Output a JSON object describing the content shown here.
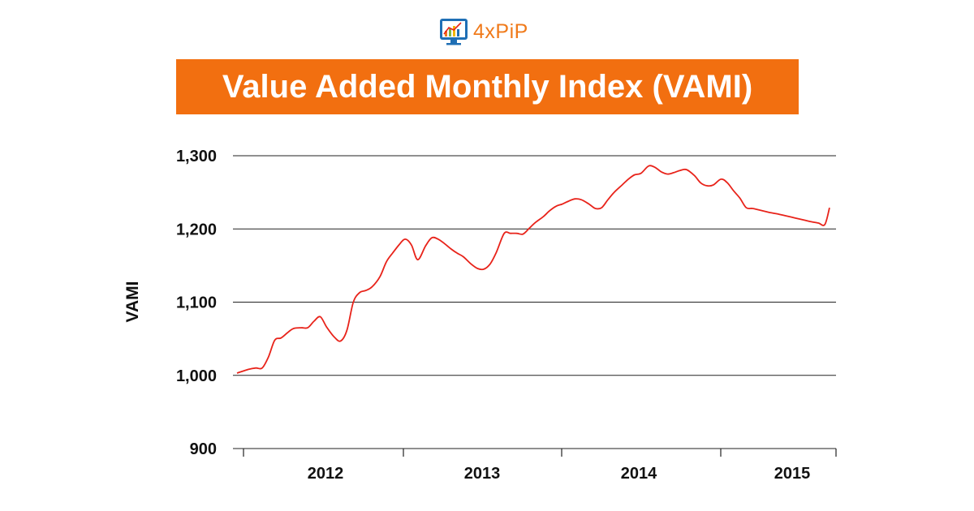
{
  "logo": {
    "text": "4xPiP"
  },
  "colors": {
    "banner": "#f26f10",
    "line": "#e8231a",
    "grid": "#222222",
    "logo_text": "#f07a1a"
  },
  "chart_data": {
    "type": "line",
    "title": "Value Added Monthly Index (VAMI)",
    "xlabel": "",
    "ylabel": "VAMI",
    "ylim": [
      900,
      1300
    ],
    "y_ticks": [
      900,
      1000,
      1100,
      1200,
      1300
    ],
    "y_tick_labels": [
      "900",
      "1,000",
      "1,100",
      "1,200",
      "1,300"
    ],
    "x_tick_labels": [
      "2012",
      "2013",
      "2014",
      "2015"
    ],
    "x_range": [
      2011.96,
      2015.73
    ],
    "grid": "horizontal",
    "legend": "none",
    "series": [
      {
        "color": "#e8231a",
        "x": [
          2011.96,
          2012.03,
          2012.08,
          2012.12,
          2012.16,
          2012.2,
          2012.24,
          2012.28,
          2012.32,
          2012.37,
          2012.41,
          2012.45,
          2012.49,
          2012.53,
          2012.58,
          2012.62,
          2012.66,
          2012.7,
          2012.74,
          2012.78,
          2012.82,
          2012.87,
          2012.91,
          2012.95,
          2012.99,
          2013.03,
          2013.07,
          2013.11,
          2013.16,
          2013.2,
          2013.24,
          2013.28,
          2013.32,
          2013.36,
          2013.4,
          2013.45,
          2013.49,
          2013.53,
          2013.57,
          2013.61,
          2013.66,
          2013.7,
          2013.74,
          2013.78,
          2013.82,
          2013.86,
          2013.91,
          2013.95,
          2013.99,
          2014.03,
          2014.07,
          2014.11,
          2014.15,
          2014.2,
          2014.24,
          2014.28,
          2014.32,
          2014.36,
          2014.41,
          2014.45,
          2014.49,
          2014.53,
          2014.58,
          2014.62,
          2014.66,
          2014.7,
          2014.74,
          2014.78,
          2014.82,
          2014.87,
          2014.91,
          2014.95,
          2014.99,
          2015.04,
          2015.08,
          2015.12,
          2015.16,
          2015.2,
          2015.24,
          2015.28,
          2015.32,
          2015.36,
          2015.41,
          2015.45,
          2015.49,
          2015.53,
          2015.57,
          2015.61,
          2015.66,
          2015.7,
          2015.73
        ],
        "y": [
          1003,
          1008,
          1010,
          1010,
          1025,
          1048,
          1051,
          1058,
          1064,
          1065,
          1065,
          1074,
          1080,
          1066,
          1052,
          1047,
          1062,
          1100,
          1113,
          1116,
          1121,
          1135,
          1155,
          1167,
          1178,
          1186,
          1178,
          1158,
          1177,
          1188,
          1186,
          1180,
          1173,
          1167,
          1162,
          1152,
          1146,
          1145,
          1152,
          1168,
          1194,
          1194,
          1194,
          1193,
          1201,
          1209,
          1217,
          1225,
          1231,
          1234,
          1238,
          1241,
          1240,
          1234,
          1228,
          1229,
          1240,
          1250,
          1260,
          1268,
          1274,
          1276,
          1286,
          1284,
          1278,
          1275,
          1277,
          1280,
          1281,
          1273,
          1263,
          1259,
          1260,
          1268,
          1263,
          1252,
          1242,
          1229,
          1228,
          1226,
          1224,
          1222,
          1220,
          1218,
          1216,
          1214,
          1212,
          1210,
          1208,
          1206,
          1229
        ]
      }
    ]
  }
}
